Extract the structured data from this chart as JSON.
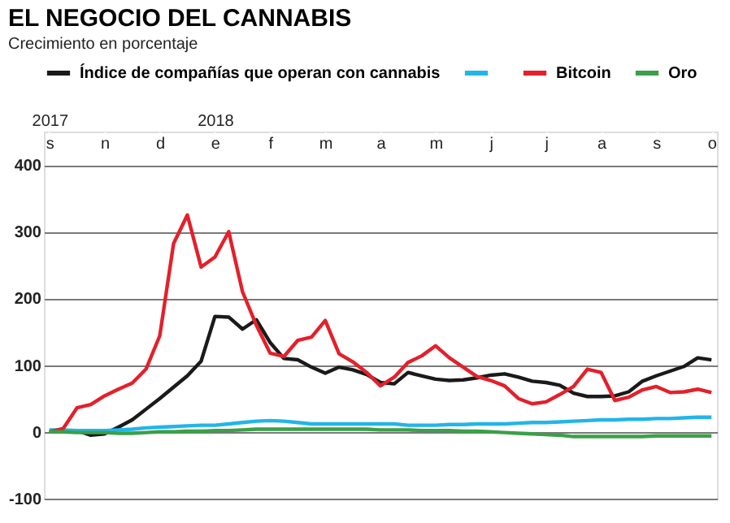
{
  "chart_data": {
    "type": "line",
    "title": "EL NEGOCIO DEL CANNABIS",
    "subtitle": "Crecimiento en porcentaje",
    "categories": [
      "s",
      null,
      null,
      null,
      "n",
      null,
      null,
      null,
      "d",
      null,
      null,
      null,
      "e",
      null,
      null,
      null,
      "f",
      null,
      null,
      null,
      "m",
      null,
      null,
      null,
      "a",
      null,
      null,
      null,
      "m",
      null,
      null,
      null,
      "j",
      null,
      null,
      null,
      "j",
      null,
      null,
      null,
      "a",
      null,
      null,
      null,
      "s",
      null,
      null,
      null,
      "o"
    ],
    "annotations": [
      "2017",
      "2018"
    ],
    "ylim": [
      -100,
      450
    ],
    "yticks": [
      -100,
      0,
      100,
      200,
      300,
      400
    ],
    "grid": true,
    "legend": "top",
    "line_style": "solid",
    "series": [
      {
        "name": "Índice de compañías que operan con cannabis",
        "color": "#1a1a1a",
        "values": [
          0,
          2,
          2,
          -5,
          -3,
          7,
          18,
          34,
          50,
          67,
          84,
          106,
          173,
          172,
          154,
          168,
          134,
          110,
          108,
          97,
          88,
          97,
          93,
          86,
          74,
          72,
          89,
          84,
          79,
          77,
          78,
          81,
          85,
          87,
          82,
          76,
          74,
          70,
          58,
          53,
          53,
          54,
          60,
          76,
          84,
          91,
          98,
          111,
          108
        ]
      },
      {
        "color": "#22b5e8",
        "values": [
          3,
          3,
          2,
          2,
          2,
          3,
          4,
          6,
          7,
          8,
          9,
          10,
          10,
          12,
          14,
          16,
          17,
          16,
          14,
          12,
          12,
          12,
          12,
          12,
          12,
          12,
          10,
          10,
          10,
          11,
          11,
          12,
          12,
          12,
          13,
          14,
          14,
          15,
          16,
          17,
          18,
          18,
          19,
          19,
          20,
          20,
          21,
          22,
          22
        ]
      },
      {
        "name": "Bitcoin",
        "color": "#e3202b",
        "values": [
          0,
          5,
          36,
          41,
          54,
          64,
          73,
          94,
          144,
          282,
          325,
          247,
          262,
          300,
          210,
          160,
          118,
          113,
          137,
          142,
          167,
          117,
          105,
          89,
          69,
          82,
          104,
          114,
          129,
          111,
          97,
          83,
          77,
          69,
          50,
          42,
          45,
          56,
          68,
          94,
          89,
          47,
          52,
          63,
          68,
          59,
          60,
          64,
          59
        ]
      },
      {
        "name": "Oro",
        "color": "#3aa04a",
        "values": [
          0,
          0,
          -1,
          -1,
          -1,
          -2,
          -2,
          -1,
          0,
          0,
          1,
          1,
          2,
          2,
          3,
          4,
          4,
          4,
          4,
          4,
          4,
          4,
          4,
          4,
          3,
          3,
          3,
          2,
          2,
          2,
          1,
          1,
          0,
          -1,
          -2,
          -3,
          -4,
          -5,
          -7,
          -7,
          -7,
          -7,
          -7,
          -7,
          -6,
          -6,
          -6,
          -6,
          -6
        ]
      }
    ]
  }
}
